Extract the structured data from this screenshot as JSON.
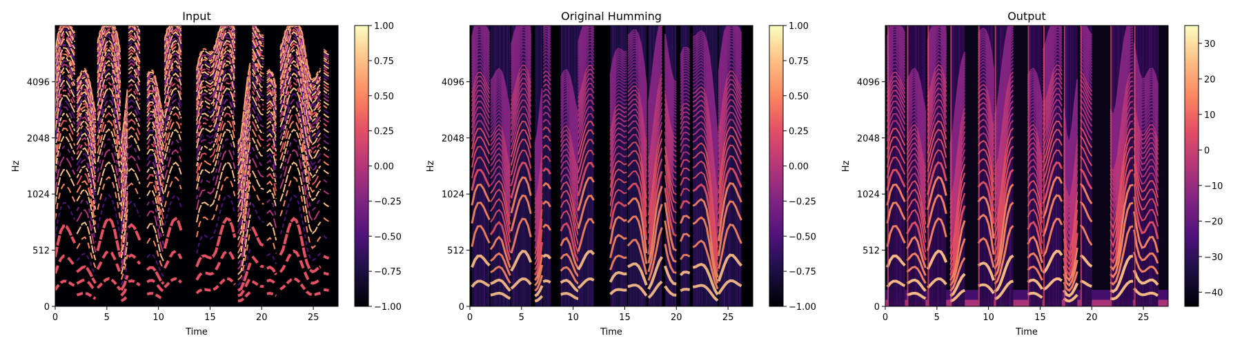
{
  "chart_data": [
    {
      "type": "heatmap",
      "title": "Input",
      "xlabel": "Time",
      "ylabel": "Hz",
      "x_ticks": [
        "0",
        "5",
        "10",
        "15",
        "20",
        "25"
      ],
      "x_tick_values": [
        0,
        5,
        10,
        15,
        20,
        25
      ],
      "xlim": [
        0,
        27.4
      ],
      "y_ticks": [
        "0",
        "512",
        "1024",
        "2048",
        "4096"
      ],
      "y_tick_values": [
        0,
        512,
        1024,
        2048,
        4096
      ],
      "y_scale": "symlog",
      "colormap": "magma",
      "colorbar": {
        "range": [
          -1.0,
          1.0
        ],
        "ticks": [
          "1.00",
          "0.75",
          "0.50",
          "0.25",
          "0.00",
          "−0.25",
          "−0.50",
          "−0.75",
          "−1.00"
        ],
        "tick_values": [
          1.0,
          0.75,
          0.5,
          0.25,
          0.0,
          -0.25,
          -0.5,
          -0.75,
          -1.0
        ]
      },
      "segments": [
        [
          0.0,
          1.9
        ],
        [
          2.1,
          3.9
        ],
        [
          4.1,
          6.3
        ],
        [
          6.4,
          7.0
        ],
        [
          7.1,
          8.2
        ],
        [
          8.9,
          10.5
        ],
        [
          10.6,
          12.2
        ],
        [
          13.7,
          17.4
        ],
        [
          17.7,
          18.9
        ],
        [
          19.1,
          20.2
        ],
        [
          20.5,
          21.4
        ],
        [
          21.8,
          25.7
        ],
        [
          26.0,
          26.5
        ]
      ],
      "style": "synthetic"
    },
    {
      "type": "heatmap",
      "title": "Original Humming",
      "xlabel": "Time",
      "ylabel": "Hz",
      "x_ticks": [
        "0",
        "5",
        "10",
        "15",
        "20",
        "25"
      ],
      "x_tick_values": [
        0,
        5,
        10,
        15,
        20,
        25
      ],
      "xlim": [
        0,
        27.4
      ],
      "y_ticks": [
        "0",
        "512",
        "1024",
        "2048",
        "4096"
      ],
      "y_tick_values": [
        0,
        512,
        1024,
        2048,
        4096
      ],
      "y_scale": "symlog",
      "colormap": "magma",
      "colorbar": {
        "range": [
          -1.0,
          1.0
        ],
        "ticks": [
          "1.00",
          "0.75",
          "0.50",
          "0.25",
          "0.00",
          "−0.25",
          "−0.50",
          "−0.75",
          "−1.00"
        ],
        "tick_values": [
          1.0,
          0.75,
          0.5,
          0.25,
          0.0,
          -0.25,
          -0.5,
          -0.75,
          -1.0
        ]
      },
      "segments": [
        [
          0.2,
          1.9
        ],
        [
          2.0,
          3.9
        ],
        [
          4.0,
          5.9
        ],
        [
          6.3,
          7.0
        ],
        [
          7.1,
          7.8
        ],
        [
          8.8,
          10.5
        ],
        [
          10.5,
          12.0
        ],
        [
          13.6,
          15.2
        ],
        [
          15.3,
          17.1
        ],
        [
          17.3,
          18.6
        ],
        [
          18.9,
          20.0
        ],
        [
          20.4,
          21.3
        ],
        [
          21.6,
          24.0
        ],
        [
          24.1,
          26.3
        ]
      ],
      "style": "real"
    },
    {
      "type": "heatmap",
      "title": "Output",
      "xlabel": "Time",
      "ylabel": "Hz",
      "x_ticks": [
        "0",
        "5",
        "10",
        "15",
        "20",
        "25"
      ],
      "x_tick_values": [
        0,
        5,
        10,
        15,
        20,
        25
      ],
      "xlim": [
        0,
        27.4
      ],
      "y_ticks": [
        "0",
        "512",
        "1024",
        "2048",
        "4096"
      ],
      "y_tick_values": [
        0,
        512,
        1024,
        2048,
        4096
      ],
      "y_scale": "symlog",
      "colormap": "magma",
      "colorbar": {
        "range": [
          -44,
          35
        ],
        "ticks": [
          "30",
          "20",
          "10",
          "0",
          "−10",
          "−20",
          "−30",
          "−40"
        ],
        "tick_values": [
          30,
          20,
          10,
          0,
          -10,
          -20,
          -30,
          -40
        ]
      },
      "segments": [
        [
          0.2,
          1.9
        ],
        [
          2.1,
          3.9
        ],
        [
          4.1,
          5.9
        ],
        [
          6.3,
          7.7
        ],
        [
          9.0,
          10.5
        ],
        [
          10.6,
          12.4
        ],
        [
          13.8,
          15.2
        ],
        [
          15.3,
          17.1
        ],
        [
          17.3,
          18.6
        ],
        [
          18.9,
          20.0
        ],
        [
          21.8,
          24.0
        ],
        [
          24.1,
          26.4
        ]
      ],
      "style": "output"
    }
  ]
}
